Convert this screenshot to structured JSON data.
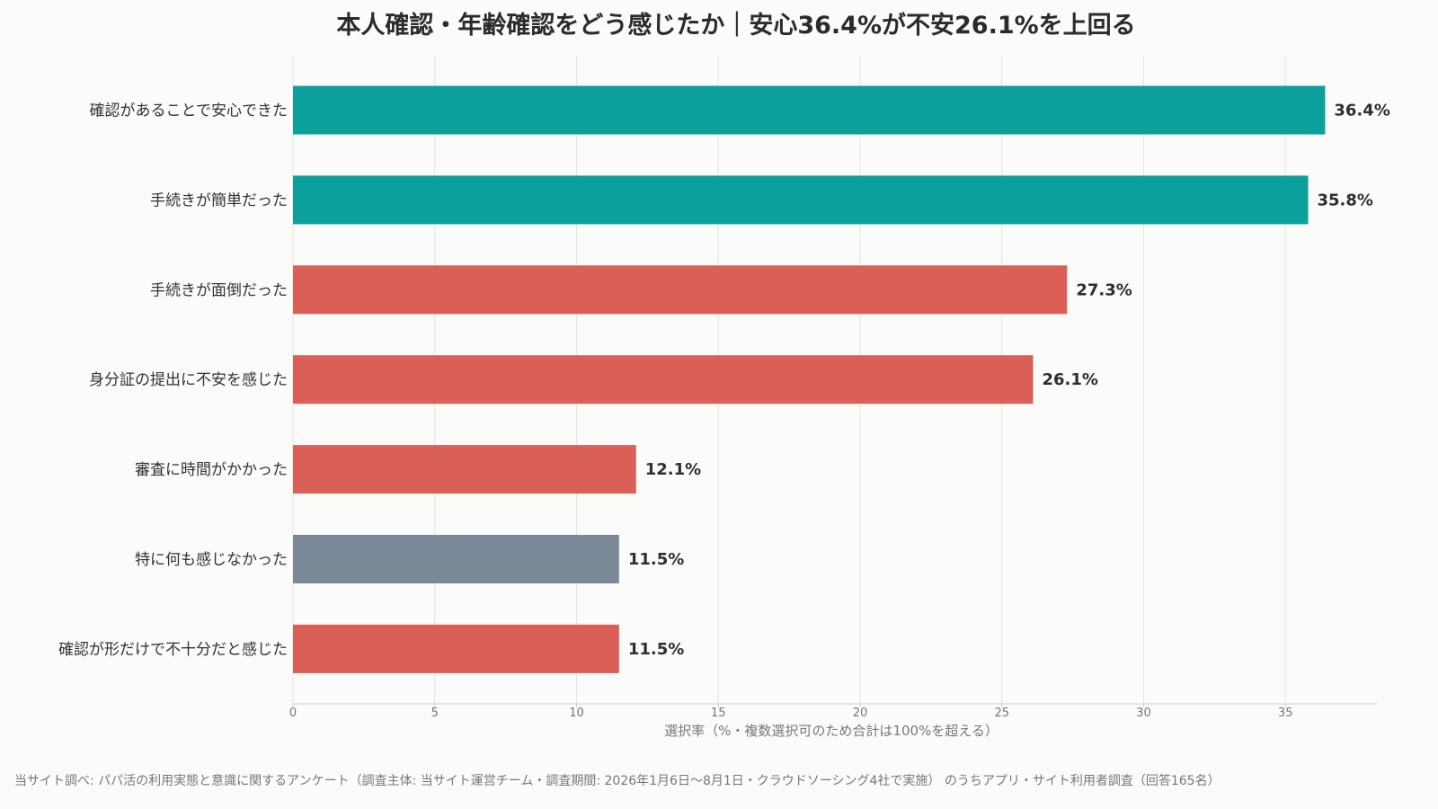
{
  "chart_data": {
    "type": "bar",
    "orientation": "horizontal",
    "title": "本人確認・年齢確認をどう感じたか｜安心36.4%が不安26.1%を上回る",
    "xlabel": "選択率（%・複数選択可のため合計は100%を超える）",
    "ylabel": "",
    "xlim": [
      0,
      38.3
    ],
    "xticks": [
      0,
      5,
      10,
      15,
      20,
      25,
      30,
      35
    ],
    "grid": true,
    "categories": [
      "確認があることで安心できた",
      "手続きが簡単だった",
      "手続きが面倒だった",
      "身分証の提出に不安を感じた",
      "審査に時間がかかった",
      "特に何も感じなかった",
      "確認が形だけで不十分だと感じた"
    ],
    "values": [
      36.4,
      35.8,
      27.3,
      26.1,
      12.1,
      11.5,
      11.5
    ],
    "value_labels": [
      "36.4%",
      "35.8%",
      "27.3%",
      "26.1%",
      "12.1%",
      "11.5%",
      "11.5%"
    ],
    "bar_colors": [
      "#0ba09b",
      "#0ba09b",
      "#d95f57",
      "#d95f57",
      "#d95f57",
      "#7b8898",
      "#d95f57"
    ]
  },
  "source_note": "当サイト調べ: パパ活の利用実態と意識に関するアンケート（調査主体: 当サイト運営チーム・調査期間: 2026年1月6日〜8月1日・クラウドソーシング4社で実施） のうちアプリ・サイト利用者調査（回答165名）"
}
